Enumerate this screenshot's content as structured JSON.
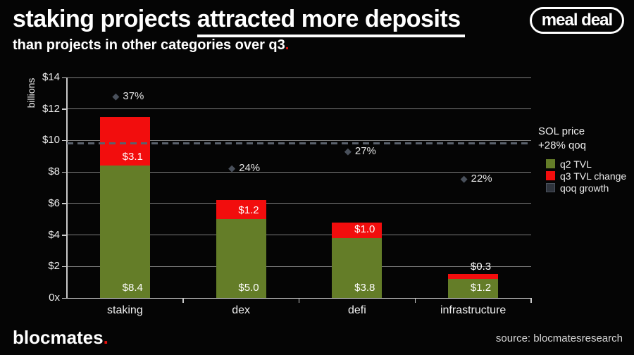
{
  "header": {
    "title_plain": "staking projects ",
    "title_underlined": "attracted more deposits",
    "subtitle": "than projects in other categories over q3",
    "subtitle_period": ".",
    "badge": "meal deal"
  },
  "colors": {
    "background": "#050505",
    "q2_green": "#647d28",
    "q3_red": "#f20d0d",
    "qoq_slate": "#2e333c",
    "qoq_swatch_border": "#4a515c",
    "dashed_line": "#5a616c",
    "diamond": "#49505b",
    "gridline": "#7e7e7e",
    "accent_red": "#e8100c"
  },
  "chart_data": {
    "type": "bar",
    "stacked": true,
    "ylabel": "billions",
    "categories": [
      "staking",
      "dex",
      "defi",
      "infrastructure"
    ],
    "series": [
      {
        "name": "q2 TVL",
        "color": "#647d28",
        "values": [
          8.4,
          5.0,
          3.8,
          1.2
        ],
        "labels": [
          "$8.4",
          "$5.0",
          "$3.8",
          "$1.2"
        ]
      },
      {
        "name": "q3 TVL change",
        "color": "#f20d0d",
        "values": [
          3.1,
          1.2,
          1.0,
          0.3
        ],
        "labels": [
          "$3.1",
          "$1.2",
          "$1.0",
          "$0.3"
        ]
      },
      {
        "name": "qoq growth",
        "color": "#2e333c",
        "marker": "diamond",
        "values_pct": [
          37,
          24,
          27,
          22
        ],
        "labels": [
          "37%",
          "24%",
          "27%",
          "22%"
        ]
      }
    ],
    "y_axis": {
      "title": "billions",
      "ticks": [
        "$14",
        "$12",
        "$10",
        "$8",
        "$6",
        "$4",
        "$2",
        "0x"
      ],
      "tick_values": [
        14,
        12,
        10,
        8,
        6,
        4,
        2,
        0
      ],
      "max": 14
    },
    "secondary_axis": {
      "max_pct": 40
    },
    "reference_line": {
      "value_pct": 28,
      "label_line1": "SOL price",
      "label_line2": "+28% qoq"
    },
    "grid": true,
    "legend_position": "right"
  },
  "footer": {
    "brand": "blocmates",
    "brand_period": ".",
    "source": "source: blocmatesresearch"
  }
}
